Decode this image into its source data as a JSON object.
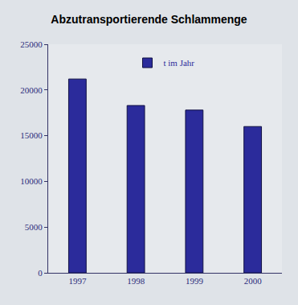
{
  "chart_data": {
    "type": "bar",
    "title": "Abzutransportierende Schlammenge",
    "categories": [
      "1997",
      "1998",
      "1999",
      "2000"
    ],
    "series": [
      {
        "name": "t im Jahr",
        "color": "#2b2b9b",
        "values": [
          21200,
          18300,
          17800,
          16000
        ]
      }
    ],
    "ylim": [
      0,
      25000
    ],
    "yticks": [
      0,
      5000,
      10000,
      15000,
      20000,
      25000
    ],
    "grid": false,
    "legend": "top"
  }
}
